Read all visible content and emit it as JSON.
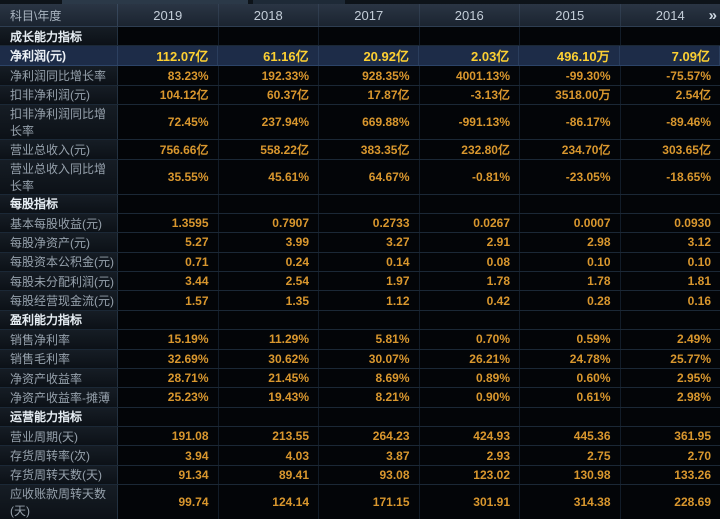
{
  "colors": {
    "background": "#05080c",
    "header_bg": "#222d3a",
    "header_text": "#c3cdd8",
    "label_text": "#96a1ac",
    "section_text": "#e6edf3",
    "value_orange": "#d9972e",
    "highlight_bg": "#1d2c48",
    "highlight_value": "#fdd032",
    "grid_line": "#1b2836"
  },
  "table": {
    "corner_label": "科目\\年度",
    "years": [
      "2019",
      "2018",
      "2017",
      "2016",
      "2015",
      "2014"
    ],
    "more_icon": "»",
    "rows": [
      {
        "type": "section",
        "label": "成长能力指标"
      },
      {
        "type": "highlight",
        "label": "净利润(元)",
        "values": [
          "112.07亿",
          "61.16亿",
          "20.92亿",
          "2.03亿",
          "496.10万",
          "7.09亿"
        ]
      },
      {
        "type": "data",
        "label": "净利润同比增长率",
        "values": [
          "83.23%",
          "192.33%",
          "928.35%",
          "4001.13%",
          "-99.30%",
          "-75.57%"
        ]
      },
      {
        "type": "data",
        "label": "扣非净利润(元)",
        "values": [
          "104.12亿",
          "60.37亿",
          "17.87亿",
          "-3.13亿",
          "3518.00万",
          "2.54亿"
        ]
      },
      {
        "type": "data",
        "label": "扣非净利润同比增长率",
        "values": [
          "72.45%",
          "237.94%",
          "669.88%",
          "-991.13%",
          "-86.17%",
          "-89.46%"
        ]
      },
      {
        "type": "data",
        "label": "营业总收入(元)",
        "values": [
          "756.66亿",
          "558.22亿",
          "383.35亿",
          "232.80亿",
          "234.70亿",
          "303.65亿"
        ]
      },
      {
        "type": "data",
        "label": "营业总收入同比增长率",
        "values": [
          "35.55%",
          "45.61%",
          "64.67%",
          "-0.81%",
          "-23.05%",
          "-18.65%"
        ]
      },
      {
        "type": "section",
        "label": "每股指标"
      },
      {
        "type": "data",
        "label": "基本每股收益(元)",
        "values": [
          "1.3595",
          "0.7907",
          "0.2733",
          "0.0267",
          "0.0007",
          "0.0930"
        ]
      },
      {
        "type": "data",
        "label": "每股净资产(元)",
        "values": [
          "5.27",
          "3.99",
          "3.27",
          "2.91",
          "2.98",
          "3.12"
        ]
      },
      {
        "type": "data",
        "label": "每股资本公积金(元)",
        "values": [
          "0.71",
          "0.24",
          "0.14",
          "0.08",
          "0.10",
          "0.10"
        ]
      },
      {
        "type": "data",
        "label": "每股未分配利润(元)",
        "values": [
          "3.44",
          "2.54",
          "1.97",
          "1.78",
          "1.78",
          "1.81"
        ]
      },
      {
        "type": "data",
        "label": "每股经营现金流(元)",
        "values": [
          "1.57",
          "1.35",
          "1.12",
          "0.42",
          "0.28",
          "0.16"
        ]
      },
      {
        "type": "section",
        "label": "盈利能力指标"
      },
      {
        "type": "data",
        "label": "销售净利率",
        "values": [
          "15.19%",
          "11.29%",
          "5.81%",
          "0.70%",
          "0.59%",
          "2.49%"
        ]
      },
      {
        "type": "data",
        "label": "销售毛利率",
        "values": [
          "32.69%",
          "30.62%",
          "30.07%",
          "26.21%",
          "24.78%",
          "25.77%"
        ]
      },
      {
        "type": "data",
        "label": "净资产收益率",
        "values": [
          "28.71%",
          "21.45%",
          "8.69%",
          "0.89%",
          "0.60%",
          "2.95%"
        ]
      },
      {
        "type": "data",
        "label": "净资产收益率-摊薄",
        "values": [
          "25.23%",
          "19.43%",
          "8.21%",
          "0.90%",
          "0.61%",
          "2.98%"
        ]
      },
      {
        "type": "section",
        "label": "运营能力指标"
      },
      {
        "type": "data",
        "label": "营业周期(天)",
        "values": [
          "191.08",
          "213.55",
          "264.23",
          "424.93",
          "445.36",
          "361.95"
        ]
      },
      {
        "type": "data",
        "label": "存货周转率(次)",
        "values": [
          "3.94",
          "4.03",
          "3.87",
          "2.93",
          "2.75",
          "2.70"
        ]
      },
      {
        "type": "data",
        "label": "存货周转天数(天)",
        "values": [
          "91.34",
          "89.41",
          "93.08",
          "123.02",
          "130.98",
          "133.26"
        ]
      },
      {
        "type": "data",
        "label": "应收账款周转天数(天)",
        "values": [
          "99.74",
          "124.14",
          "171.15",
          "301.91",
          "314.38",
          "228.69"
        ]
      }
    ]
  }
}
